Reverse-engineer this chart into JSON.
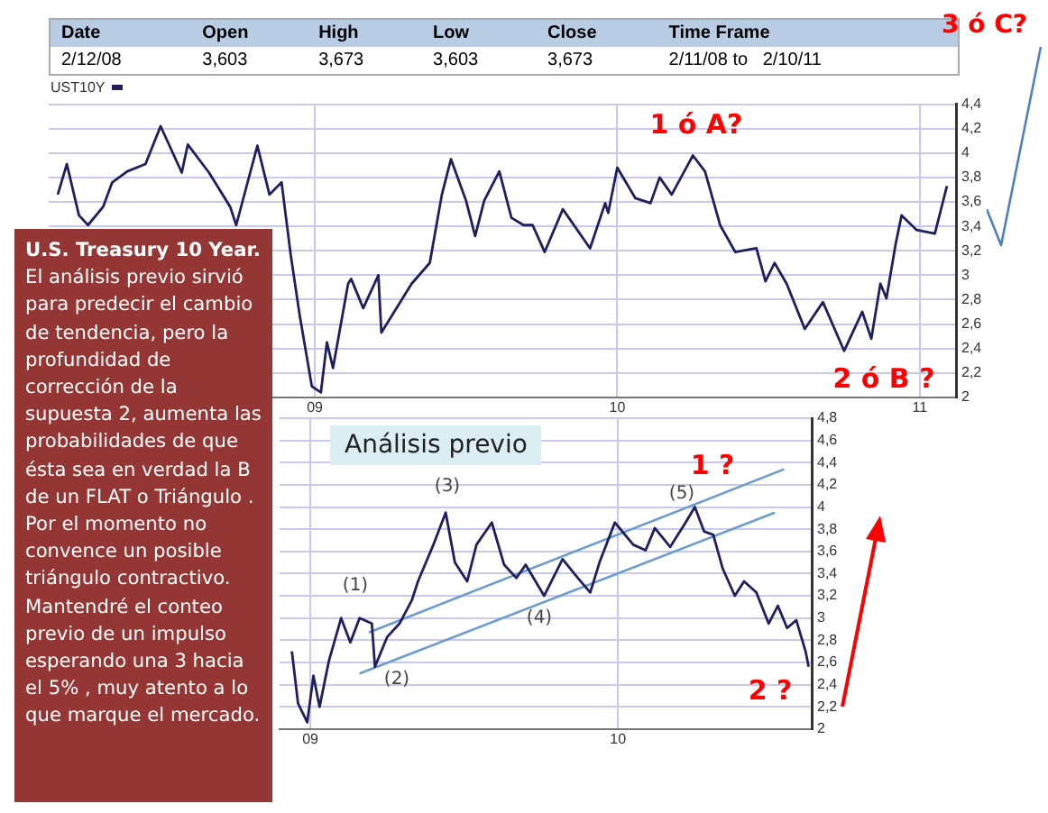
{
  "chart_data": [
    {
      "type": "line",
      "title": "U.S. Treasury 10 Year.",
      "legend": "top left",
      "grid": true,
      "xlim": [
        2008.12,
        2011.12
      ],
      "xticks": [
        {
          "value": 2009,
          "label": "09"
        },
        {
          "value": 2010,
          "label": "10"
        },
        {
          "value": 2011,
          "label": "11"
        }
      ],
      "ylim": [
        2,
        4.4
      ],
      "yticks": [
        {
          "value": 2,
          "label": "2"
        },
        {
          "value": 2.2,
          "label": "2,2"
        },
        {
          "value": 2.4,
          "label": "2,4"
        },
        {
          "value": 2.6,
          "label": "2,6"
        },
        {
          "value": 2.8,
          "label": "2,8"
        },
        {
          "value": 3,
          "label": "3"
        },
        {
          "value": 3.2,
          "label": "3,2"
        },
        {
          "value": 3.4,
          "label": "3,4"
        },
        {
          "value": 3.6,
          "label": "3,6"
        },
        {
          "value": 3.8,
          "label": "3,8"
        },
        {
          "value": 4,
          "label": "4"
        },
        {
          "value": 4.2,
          "label": "4,2"
        },
        {
          "value": 4.4,
          "label": "4,4"
        }
      ],
      "series": [
        {
          "name": "UST10Y",
          "color": "#1f1f5f",
          "x": [
            2008.15,
            2008.18,
            2008.22,
            2008.25,
            2008.3,
            2008.33,
            2008.38,
            2008.44,
            2008.49,
            2008.56,
            2008.58,
            2008.65,
            2008.72,
            2008.74,
            2008.81,
            2008.85,
            2008.89,
            2008.92,
            2008.95,
            2008.99,
            2009.02,
            2009.04,
            2009.06,
            2009.11,
            2009.12,
            2009.16,
            2009.21,
            2009.22,
            2009.32,
            2009.38,
            2009.42,
            2009.45,
            2009.5,
            2009.53,
            2009.56,
            2009.61,
            2009.65,
            2009.69,
            2009.72,
            2009.76,
            2009.82,
            2009.91,
            2009.96,
            2009.97,
            2010.0,
            2010.06,
            2010.11,
            2010.14,
            2010.18,
            2010.25,
            2010.29,
            2010.34,
            2010.39,
            2010.46,
            2010.49,
            2010.52,
            2010.56,
            2010.62,
            2010.68,
            2010.75,
            2010.81,
            2010.84,
            2010.87,
            2010.89,
            2010.92,
            2010.94,
            2010.99,
            2011.05,
            2011.09
          ],
          "values": [
            3.66,
            3.91,
            3.49,
            3.41,
            3.56,
            3.76,
            3.85,
            3.91,
            4.22,
            3.84,
            4.07,
            3.84,
            3.56,
            3.41,
            4.06,
            3.66,
            3.76,
            3.17,
            2.67,
            2.09,
            2.04,
            2.45,
            2.24,
            2.93,
            2.97,
            2.73,
            3.0,
            2.53,
            2.93,
            3.1,
            3.66,
            3.95,
            3.61,
            3.32,
            3.61,
            3.85,
            3.47,
            3.41,
            3.41,
            3.19,
            3.54,
            3.22,
            3.59,
            3.51,
            3.88,
            3.63,
            3.59,
            3.8,
            3.66,
            3.98,
            3.85,
            3.41,
            3.19,
            3.22,
            2.95,
            3.1,
            2.93,
            2.56,
            2.78,
            2.38,
            2.7,
            2.48,
            2.93,
            2.81,
            3.25,
            3.49,
            3.37,
            3.34,
            3.73
          ]
        }
      ],
      "annotations": [
        "Date",
        "Open",
        "High",
        "Low",
        "Close",
        "Time Frame",
        "2/12/08",
        "3,603",
        "3,673",
        "3,603",
        "3,673",
        "2/11/08 to   2/10/11",
        "3 ó C?",
        "El análisis previo sirvió para predecir el cambio de tendencia, pero la profundidad de corrección de la supuesta 2, aumenta las probabilidades de que ésta sea en verdad la B de un FLAT  o Triángulo .\nPor el momento no convence un posible triángulo contractivo.\nMantendré el conteo previo de un impulso esperando una  3  hacia el  5% , muy atento  a lo que marque el mercado.",
        "1 ó A?",
        "2 ó B ?"
      ]
    },
    {
      "type": "line",
      "title": "Análisis previo",
      "grid": true,
      "xlim": [
        2008.9,
        2010.63
      ],
      "xticks": [
        {
          "value": 2009,
          "label": "09"
        },
        {
          "value": 2010,
          "label": "10"
        }
      ],
      "ylim": [
        2,
        4.8
      ],
      "yticks": [
        {
          "value": 2,
          "label": "2"
        },
        {
          "value": 2.2,
          "label": "2,2"
        },
        {
          "value": 2.4,
          "label": "2,4"
        },
        {
          "value": 2.6,
          "label": "2,6"
        },
        {
          "value": 2.8,
          "label": "2,8"
        },
        {
          "value": 3,
          "label": "3"
        },
        {
          "value": 3.2,
          "label": "3,2"
        },
        {
          "value": 3.4,
          "label": "3,4"
        },
        {
          "value": 3.6,
          "label": "3,6"
        },
        {
          "value": 3.8,
          "label": "3,8"
        },
        {
          "value": 4,
          "label": "4"
        },
        {
          "value": 4.2,
          "label": "4,2"
        },
        {
          "value": 4.4,
          "label": "4,4"
        },
        {
          "value": 4.6,
          "label": "4,6"
        },
        {
          "value": 4.8,
          "label": "4,8"
        }
      ],
      "series": [
        {
          "color": "#1f1f5f",
          "x": [
            2008.94,
            2008.96,
            2008.99,
            2009.01,
            2009.03,
            2009.06,
            2009.09,
            2009.1,
            2009.13,
            2009.16,
            2009.2,
            2009.21,
            2009.25,
            2009.29,
            2009.33,
            2009.35,
            2009.4,
            2009.44,
            2009.47,
            2009.51,
            2009.54,
            2009.59,
            2009.63,
            2009.67,
            2009.7,
            2009.76,
            2009.82,
            2009.87,
            2009.91,
            2009.94,
            2009.99,
            2010.05,
            2010.09,
            2010.12,
            2010.17,
            2010.22,
            2010.25,
            2010.28,
            2010.31,
            2010.34,
            2010.38,
            2010.41,
            2010.45,
            2010.49,
            2010.52,
            2010.55,
            2010.58,
            2010.61,
            2010.62
          ],
          "values": [
            2.7,
            2.23,
            2.06,
            2.48,
            2.2,
            2.61,
            2.9,
            3.0,
            2.78,
            3.0,
            2.95,
            2.56,
            2.83,
            2.95,
            3.16,
            3.33,
            3.66,
            3.95,
            3.5,
            3.33,
            3.66,
            3.86,
            3.48,
            3.36,
            3.48,
            3.2,
            3.53,
            3.36,
            3.23,
            3.5,
            3.86,
            3.66,
            3.61,
            3.81,
            3.64,
            3.86,
            4.0,
            3.78,
            3.75,
            3.45,
            3.2,
            3.33,
            3.23,
            2.95,
            3.11,
            2.91,
            2.98,
            2.7,
            2.56
          ]
        },
        {
          "type": "line",
          "color": "#6a9bd1",
          "x": [
            2009.19,
            2010.54
          ],
          "values": [
            2.87,
            4.34
          ]
        },
        {
          "type": "line",
          "color": "#6a9bd1",
          "x": [
            2009.16,
            2010.51
          ],
          "values": [
            2.5,
            3.95
          ]
        }
      ],
      "annotations": [
        "(1)",
        "(2)",
        "(3)",
        "(4)",
        "(5)",
        "1 ?",
        "2 ?"
      ]
    }
  ]
}
